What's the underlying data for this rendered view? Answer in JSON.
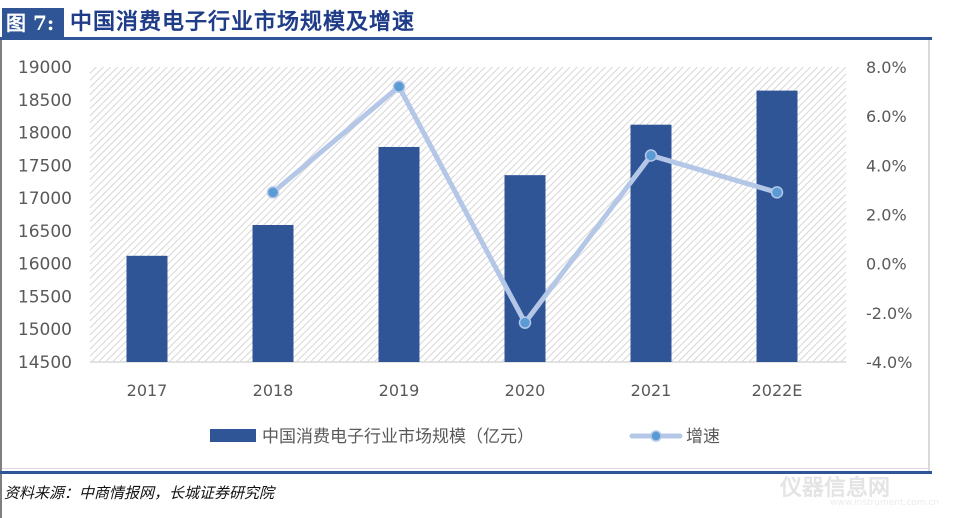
{
  "header": {
    "figure_label": "图 7:",
    "title": "中国消费电子行业市场规模及增速"
  },
  "footer": {
    "source": "资料来源：中商情报网，长城证券研究院",
    "watermark": "仪器信息网",
    "watermark_url": "www.instrument.com.cn"
  },
  "colors": {
    "bar": "#2F5597",
    "line": "#B4C7E7",
    "marker": "#5B9BD5",
    "accent": "#2F5597",
    "axis_text": "#595959"
  },
  "chart_data": {
    "type": "bar",
    "title": "中国消费电子行业市场规模及增速",
    "categories": [
      "2017",
      "2018",
      "2019",
      "2020",
      "2021",
      "2022E"
    ],
    "series": [
      {
        "name": "中国消费电子行业市场规模（亿元）",
        "type": "bar",
        "axis": "left",
        "values": [
          16120,
          16590,
          17780,
          17350,
          18120,
          18640
        ]
      },
      {
        "name": "增速",
        "type": "line",
        "axis": "right",
        "unit": "%",
        "values": [
          null,
          2.9,
          7.2,
          -2.4,
          4.4,
          2.9
        ]
      }
    ],
    "left_axis": {
      "ylim": [
        14500,
        19000
      ],
      "ticks": [
        "19000",
        "18500",
        "18000",
        "17500",
        "17000",
        "16500",
        "16000",
        "15500",
        "15000",
        "14500"
      ]
    },
    "right_axis": {
      "ylim": [
        -4.0,
        8.0
      ],
      "ticks": [
        "8.0%",
        "6.0%",
        "4.0%",
        "2.0%",
        "0.0%",
        "-2.0%",
        "-4.0%"
      ]
    },
    "xlabel": "",
    "ylabel": "",
    "grid": false,
    "plot_background": "diagonal hatch",
    "legend_position": "bottom",
    "legend": [
      "中国消费电子行业市场规模（亿元）",
      "增速"
    ]
  }
}
